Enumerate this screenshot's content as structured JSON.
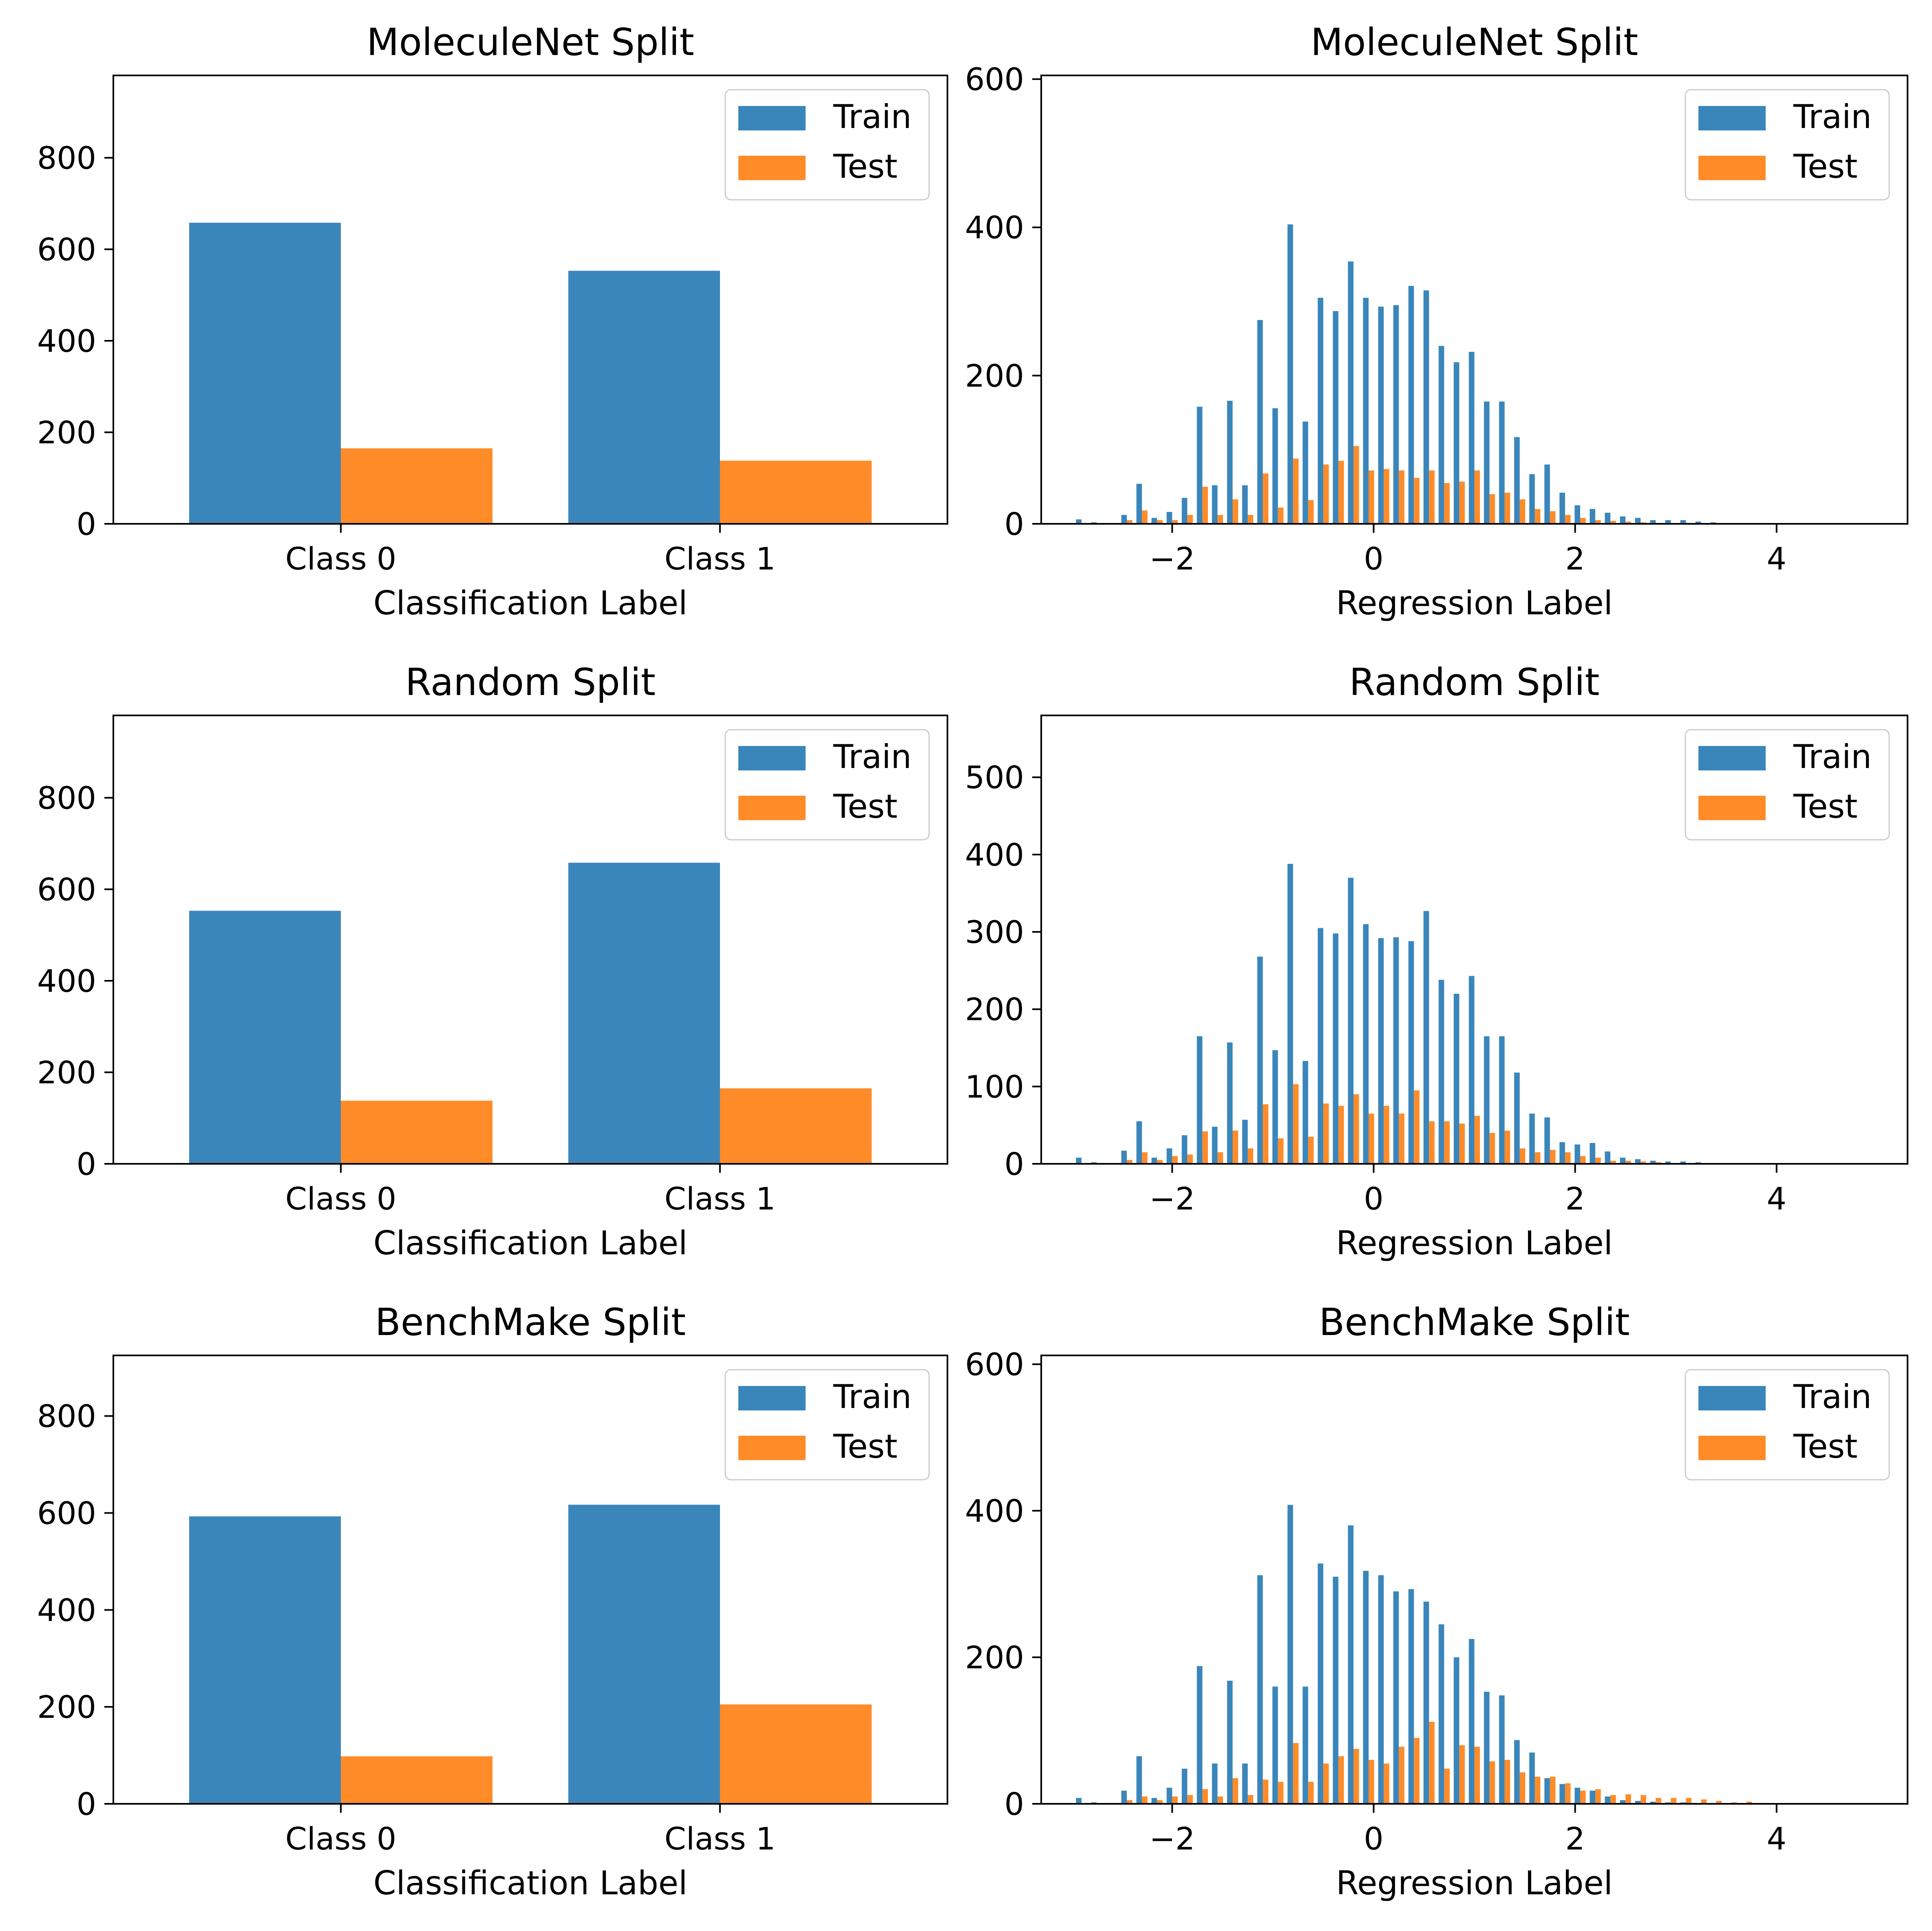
{
  "colors": {
    "train": "#3a86bb",
    "test": "#ff8c29"
  },
  "chart_data": [
    {
      "type": "bar",
      "panel": "classification",
      "title": "MoleculeNet Split",
      "xlabel": "Classification Label",
      "ylabel": "",
      "categories": [
        "Class 0",
        "Class 1"
      ],
      "series": [
        {
          "name": "Train",
          "values": [
            658,
            553
          ]
        },
        {
          "name": "Test",
          "values": [
            165,
            138
          ]
        }
      ],
      "ylim": [
        0,
        980
      ],
      "yticks": [
        0,
        200,
        400,
        600,
        800
      ],
      "legend": "top-right",
      "grid": false
    },
    {
      "type": "bar",
      "panel": "regression",
      "title": "MoleculeNet Split",
      "xlabel": "Regression Label",
      "ylabel": "",
      "xlim": [
        -3.3,
        5.3
      ],
      "ylim": [
        0,
        605
      ],
      "xticks": [
        -2,
        0,
        2,
        4
      ],
      "xtick_labels": [
        "−2",
        "0",
        "2",
        "4"
      ],
      "yticks": [
        0,
        200,
        400,
        600
      ],
      "x": [
        -2.9,
        -2.75,
        -2.6,
        -2.45,
        -2.3,
        -2.15,
        -2.0,
        -1.85,
        -1.7,
        -1.55,
        -1.4,
        -1.25,
        -1.1,
        -0.95,
        -0.8,
        -0.65,
        -0.5,
        -0.35,
        -0.2,
        -0.05,
        0.1,
        0.25,
        0.4,
        0.55,
        0.7,
        0.85,
        1.0,
        1.15,
        1.3,
        1.45,
        1.6,
        1.75,
        1.9,
        2.05,
        2.2,
        2.35,
        2.5,
        2.65,
        2.8,
        2.95,
        3.1,
        3.25,
        3.4,
        3.55,
        3.7,
        3.85,
        4.0,
        4.15,
        4.3,
        4.45,
        4.6,
        4.75,
        4.9
      ],
      "series": [
        {
          "name": "Train",
          "values": [
            6,
            2,
            0,
            12,
            54,
            8,
            16,
            35,
            158,
            52,
            166,
            52,
            275,
            156,
            404,
            138,
            305,
            287,
            354,
            305,
            293,
            295,
            321,
            315,
            240,
            218,
            232,
            165,
            165,
            117,
            67,
            80,
            42,
            25,
            20,
            15,
            10,
            8,
            5,
            5,
            5,
            3,
            2,
            1,
            1,
            0,
            0,
            0,
            0,
            0,
            0,
            0,
            0
          ]
        },
        {
          "name": "Test",
          "values": [
            0,
            0,
            0,
            5,
            18,
            5,
            5,
            12,
            50,
            12,
            33,
            12,
            68,
            22,
            88,
            32,
            80,
            85,
            105,
            72,
            74,
            72,
            62,
            72,
            55,
            57,
            72,
            40,
            42,
            33,
            20,
            17,
            12,
            8,
            5,
            4,
            3,
            2,
            1,
            1,
            1,
            1,
            0,
            0,
            0,
            0,
            0,
            0,
            0,
            0,
            0,
            0,
            0
          ]
        }
      ],
      "legend": "top-right",
      "grid": false
    },
    {
      "type": "bar",
      "panel": "classification",
      "title": "Random Split",
      "xlabel": "Classification Label",
      "ylabel": "",
      "categories": [
        "Class 0",
        "Class 1"
      ],
      "series": [
        {
          "name": "Train",
          "values": [
            553,
            658
          ]
        },
        {
          "name": "Test",
          "values": [
            138,
            165
          ]
        }
      ],
      "ylim": [
        0,
        980
      ],
      "yticks": [
        0,
        200,
        400,
        600,
        800
      ],
      "legend": "top-right",
      "grid": false
    },
    {
      "type": "bar",
      "panel": "regression",
      "title": "Random Split",
      "xlabel": "Regression Label",
      "ylabel": "",
      "xlim": [
        -3.3,
        5.3
      ],
      "ylim": [
        0,
        580
      ],
      "xticks": [
        -2,
        0,
        2,
        4
      ],
      "xtick_labels": [
        "−2",
        "0",
        "2",
        "4"
      ],
      "yticks": [
        0,
        100,
        200,
        300,
        400,
        500
      ],
      "x": [
        -2.9,
        -2.75,
        -2.6,
        -2.45,
        -2.3,
        -2.15,
        -2.0,
        -1.85,
        -1.7,
        -1.55,
        -1.4,
        -1.25,
        -1.1,
        -0.95,
        -0.8,
        -0.65,
        -0.5,
        -0.35,
        -0.2,
        -0.05,
        0.1,
        0.25,
        0.4,
        0.55,
        0.7,
        0.85,
        1.0,
        1.15,
        1.3,
        1.45,
        1.6,
        1.75,
        1.9,
        2.05,
        2.2,
        2.35,
        2.5,
        2.65,
        2.8,
        2.95,
        3.1,
        3.25,
        3.4,
        3.55,
        3.7,
        3.85,
        4.0,
        4.15,
        4.3,
        4.45,
        4.6,
        4.75,
        4.9
      ],
      "series": [
        {
          "name": "Train",
          "values": [
            8,
            2,
            0,
            17,
            55,
            8,
            20,
            37,
            165,
            48,
            157,
            57,
            268,
            147,
            388,
            133,
            305,
            298,
            370,
            310,
            292,
            293,
            288,
            327,
            238,
            220,
            243,
            165,
            165,
            118,
            65,
            60,
            28,
            25,
            27,
            16,
            8,
            6,
            4,
            3,
            3,
            2,
            1,
            1,
            0,
            0,
            0,
            0,
            0,
            0,
            0,
            0,
            0
          ]
        },
        {
          "name": "Test",
          "values": [
            0,
            0,
            0,
            5,
            15,
            5,
            10,
            12,
            42,
            15,
            43,
            20,
            77,
            33,
            103,
            35,
            78,
            75,
            90,
            65,
            75,
            65,
            95,
            55,
            55,
            52,
            62,
            40,
            43,
            20,
            15,
            18,
            15,
            10,
            8,
            4,
            4,
            3,
            2,
            1,
            1,
            0,
            0,
            0,
            0,
            0,
            0,
            0,
            0,
            0,
            0,
            0,
            0
          ]
        }
      ],
      "legend": "top-right",
      "grid": false
    },
    {
      "type": "bar",
      "panel": "classification",
      "title": "BenchMake Split",
      "xlabel": "Classification Label",
      "ylabel": "",
      "categories": [
        "Class 0",
        "Class 1"
      ],
      "series": [
        {
          "name": "Train",
          "values": [
            593,
            617
          ]
        },
        {
          "name": "Test",
          "values": [
            98,
            205
          ]
        }
      ],
      "ylim": [
        0,
        925
      ],
      "yticks": [
        0,
        200,
        400,
        600,
        800
      ],
      "legend": "top-right",
      "grid": false
    },
    {
      "type": "bar",
      "panel": "regression",
      "title": "BenchMake Split",
      "xlabel": "Regression Label",
      "ylabel": "",
      "xlim": [
        -3.3,
        5.3
      ],
      "ylim": [
        0,
        612
      ],
      "xticks": [
        -2,
        0,
        2,
        4
      ],
      "xtick_labels": [
        "−2",
        "0",
        "2",
        "4"
      ],
      "yticks": [
        0,
        200,
        400,
        600
      ],
      "x": [
        -2.9,
        -2.75,
        -2.6,
        -2.45,
        -2.3,
        -2.15,
        -2.0,
        -1.85,
        -1.7,
        -1.55,
        -1.4,
        -1.25,
        -1.1,
        -0.95,
        -0.8,
        -0.65,
        -0.5,
        -0.35,
        -0.2,
        -0.05,
        0.1,
        0.25,
        0.4,
        0.55,
        0.7,
        0.85,
        1.0,
        1.15,
        1.3,
        1.45,
        1.6,
        1.75,
        1.9,
        2.05,
        2.2,
        2.35,
        2.5,
        2.65,
        2.8,
        2.95,
        3.1,
        3.25,
        3.4,
        3.55,
        3.7,
        3.85,
        4.0,
        4.15,
        4.3,
        4.45,
        4.6,
        4.75,
        4.9
      ],
      "series": [
        {
          "name": "Train",
          "values": [
            8,
            2,
            0,
            18,
            65,
            8,
            22,
            48,
            188,
            55,
            168,
            55,
            312,
            160,
            408,
            160,
            328,
            310,
            380,
            318,
            312,
            290,
            293,
            276,
            245,
            200,
            225,
            153,
            148,
            87,
            70,
            35,
            27,
            22,
            18,
            10,
            5,
            4,
            3,
            2,
            2,
            1,
            1,
            0,
            0,
            0,
            0,
            0,
            0,
            0,
            0,
            0,
            0
          ]
        },
        {
          "name": "Test",
          "values": [
            0,
            0,
            0,
            5,
            10,
            5,
            10,
            12,
            20,
            10,
            35,
            12,
            33,
            30,
            83,
            30,
            55,
            65,
            75,
            60,
            55,
            78,
            90,
            112,
            48,
            80,
            78,
            58,
            60,
            43,
            37,
            37,
            28,
            18,
            20,
            12,
            13,
            12,
            8,
            8,
            8,
            6,
            4,
            2,
            3,
            1,
            1,
            1,
            0,
            0,
            0,
            0,
            0
          ]
        }
      ],
      "legend": "top-right",
      "grid": false
    }
  ]
}
